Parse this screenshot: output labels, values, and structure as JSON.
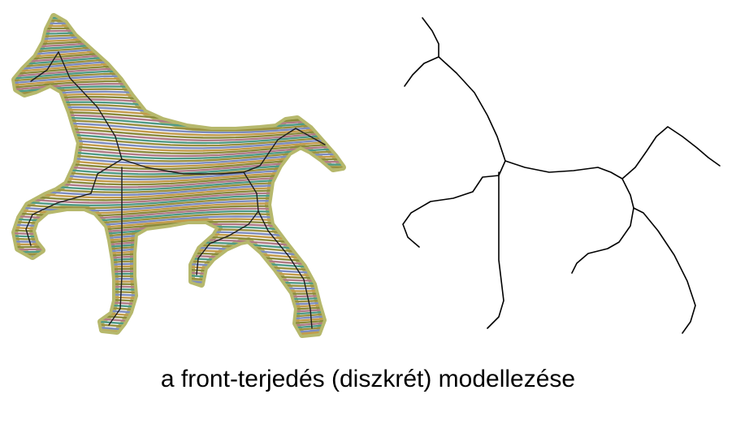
{
  "caption": "a front-terjedés (diszkrét) modellezése",
  "left_panel": {
    "depicts": "horse-silhouette-contour-fill",
    "band_colors": [
      "#8a8a3c",
      "#b07a86",
      "#4f9a86",
      "#9a8f3f",
      "#7d8cc0",
      "#c29a4a"
    ],
    "edge_color": "#b6b86c",
    "skeleton_color": "#1e1e1e"
  },
  "right_panel": {
    "depicts": "medial-axis-skeleton",
    "stroke_color": "#000000"
  }
}
